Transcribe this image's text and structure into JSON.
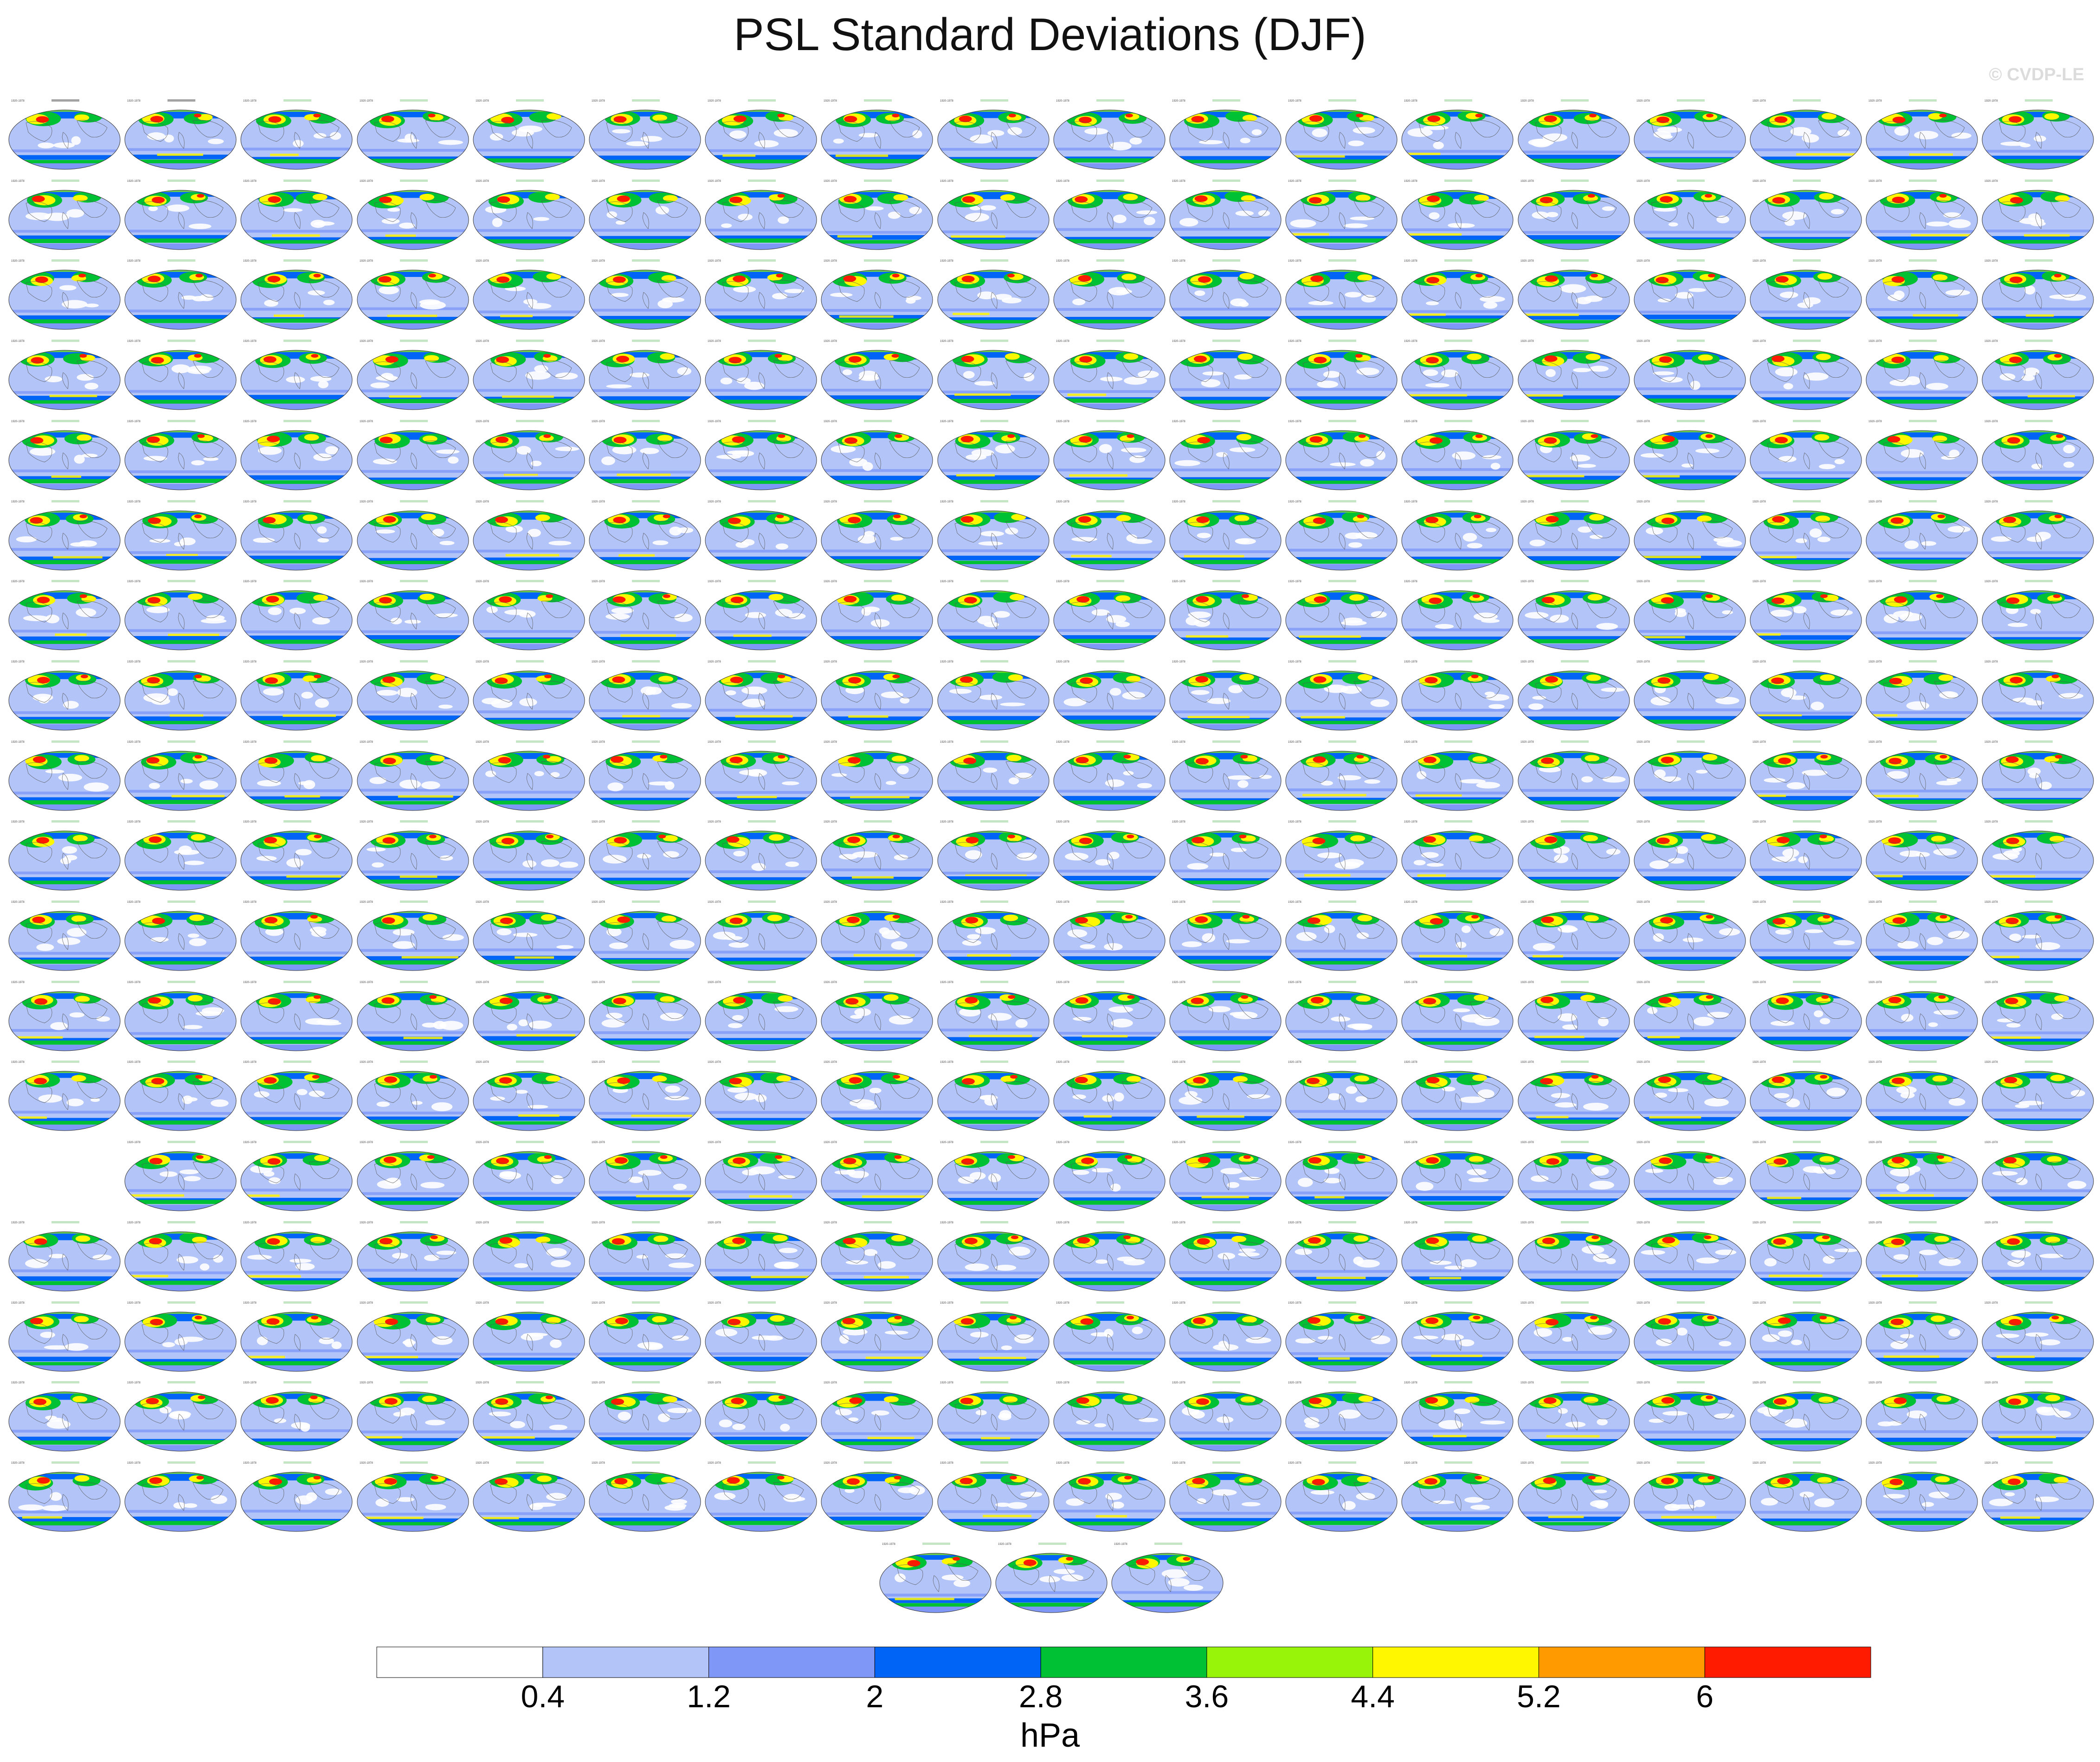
{
  "title": "PSL Standard Deviations (DJF)",
  "watermark": "© CVDP-LE",
  "chart_data": {
    "type": "heatmap",
    "title": "PSL Standard Deviations (DJF)",
    "description_map": "Global ellipse-projection maps of DJF sea level pressure standard deviation, one panel per dataset / ensemble member",
    "colorbar": {
      "units": "hPa",
      "tick_labels": [
        "0.4",
        "1.2",
        "2",
        "2.8",
        "3.6",
        "4.4",
        "5.2",
        "6"
      ],
      "levels": [
        0.4,
        1.2,
        2,
        2.8,
        3.6,
        4.4,
        5.2,
        6
      ],
      "colors": [
        "#ffffff",
        "#b3c4f8",
        "#7f98f8",
        "#0065f6",
        "#00c033",
        "#98f50a",
        "#fff700",
        "#ff9b00",
        "#ff1b00"
      ]
    },
    "panel_grid": {
      "columns": 18,
      "rows": 18,
      "extra_row_panels": 3,
      "empty_cells": [
        [
          13,
          0
        ]
      ]
    },
    "panel_titles_visible": [
      "20thC Reanalysis v2 w ERAI",
      "20thC Reanalysis v2 w ERAI_1"
    ]
  }
}
